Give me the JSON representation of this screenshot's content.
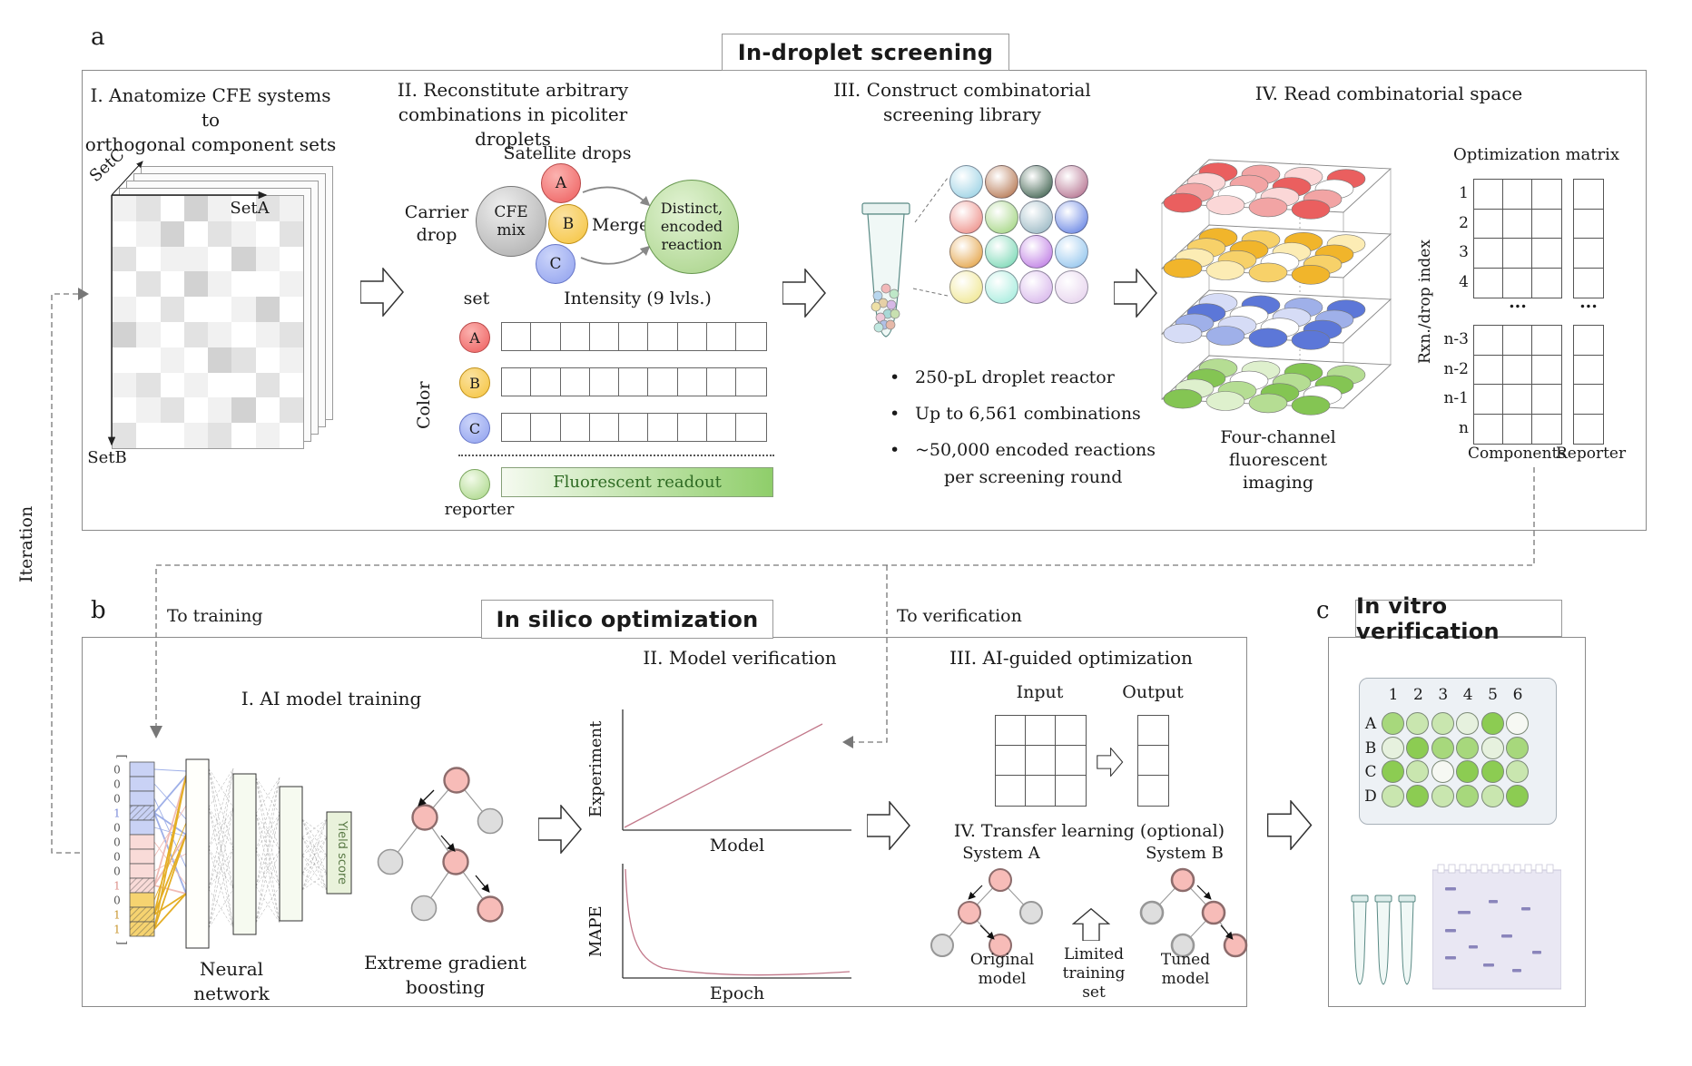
{
  "panel_a": {
    "label": "a",
    "title": "In-droplet screening",
    "step1": {
      "title_line1": "I. Anatomize CFE systems to",
      "title_line2": "orthogonal component sets",
      "set_a": "SetA",
      "set_b": "SetB",
      "set_c": "SetC",
      "heatmap": [
        [
          1,
          2,
          0,
          3,
          1,
          0,
          2,
          1
        ],
        [
          0,
          1,
          3,
          0,
          2,
          1,
          0,
          2
        ],
        [
          2,
          0,
          1,
          1,
          0,
          3,
          1,
          0
        ],
        [
          0,
          2,
          0,
          3,
          1,
          0,
          0,
          1
        ],
        [
          1,
          0,
          2,
          0,
          0,
          1,
          3,
          0
        ],
        [
          3,
          1,
          0,
          2,
          1,
          0,
          1,
          2
        ],
        [
          0,
          0,
          1,
          0,
          3,
          2,
          0,
          1
        ],
        [
          1,
          2,
          0,
          1,
          0,
          0,
          2,
          0
        ],
        [
          0,
          1,
          2,
          0,
          1,
          3,
          0,
          2
        ],
        [
          2,
          0,
          0,
          1,
          2,
          0,
          1,
          0
        ]
      ]
    },
    "step2": {
      "title_line1": "II. Reconstitute arbitrary",
      "title_line2": "combinations in picoliter droplets",
      "satellite_label": "Satellite drops",
      "carrier_label_line1": "Carrier",
      "carrier_label_line2": "drop",
      "carrier_text_line1": "CFE",
      "carrier_text_line2": "mix",
      "merge_label": "Merge",
      "reaction_line1": "Distinct,",
      "reaction_line2": "encoded",
      "reaction_line3": "reaction",
      "drop_a": "A",
      "drop_b": "B",
      "drop_c": "C",
      "set_header": "set",
      "intensity_header": "Intensity (9 lvls.)",
      "color_axis": "Color",
      "row_a": "A",
      "row_b": "B",
      "row_c": "C",
      "intensity_levels": 9,
      "readout_label": "Fluorescent readout",
      "reporter_label": "reporter"
    },
    "step3": {
      "title_line1": "III. Construct combinatorial",
      "title_line2": "screening library",
      "bullet1": "250-pL droplet reactor",
      "bullet2": "Up to 6,561 combinations",
      "bullet3_line1": "~50,000 encoded reactions",
      "bullet3_line2": "per screening round",
      "sphere_colors": [
        "#a9d8e8",
        "#c08a6a",
        "#5d7a6a",
        "#c087a0",
        "#f0a09a",
        "#b2dc96",
        "#a8c2cc",
        "#7e97e8",
        "#e8b162",
        "#8edec0",
        "#c890e8",
        "#a2cdf0",
        "#f2eaa0",
        "#b2efe2",
        "#ddc0ee",
        "#ead9f0"
      ],
      "tube_ball_colors": [
        "#f2b8b8",
        "#b8d6ee",
        "#bfe8c8",
        "#e6d0a6",
        "#d6b8e6",
        "#eee0a6",
        "#a8d8d6",
        "#eec8d8",
        "#c8e0b0",
        "#b0c0e6",
        "#e6b8a8",
        "#c0e8e0"
      ]
    },
    "step4": {
      "title": "IV. Read combinatorial space",
      "caption_line1": "Four-channel",
      "caption_line2": "fluorescent imaging",
      "matrix_title": "Optimization matrix",
      "index_axis": "Rxn./drop index",
      "row_labels_top": [
        "1",
        "2",
        "3",
        "4"
      ],
      "row_labels_bottom": [
        "n-3",
        "n-2",
        "n-1",
        "n"
      ],
      "ellipsis": "...",
      "components_label": "Components",
      "reporter_label": "Reporter",
      "component_cols": 3,
      "matrix_rows": 4,
      "layers": [
        {
          "ramp": [
            "#ffffff",
            "#fbd7d7",
            "#f2a4a4",
            "#ea5f5f"
          ],
          "pattern": [
            3,
            2,
            1,
            3,
            1,
            2,
            3,
            0,
            2,
            0,
            1,
            2,
            3,
            1,
            2,
            3
          ]
        },
        {
          "ramp": [
            "#ffffff",
            "#fcecb4",
            "#f7d169",
            "#f1b52b"
          ],
          "pattern": [
            3,
            2,
            3,
            1,
            2,
            3,
            1,
            3,
            1,
            2,
            0,
            2,
            3,
            1,
            2,
            3
          ]
        },
        {
          "ramp": [
            "#ffffff",
            "#d6dcf6",
            "#9fb0e9",
            "#5c77d8"
          ],
          "pattern": [
            1,
            3,
            2,
            3,
            3,
            0,
            1,
            2,
            2,
            1,
            0,
            3,
            1,
            2,
            3,
            3
          ]
        },
        {
          "ramp": [
            "#ffffff",
            "#def0cd",
            "#b5dd93",
            "#84c553"
          ],
          "pattern": [
            2,
            1,
            3,
            2,
            3,
            0,
            2,
            3,
            1,
            2,
            3,
            0,
            3,
            1,
            2,
            3
          ]
        }
      ]
    }
  },
  "connectors": {
    "iteration": "Iteration",
    "to_training": "To training",
    "to_verification": "To verification"
  },
  "panel_b": {
    "label": "b",
    "title": "In silico optimization",
    "step1": {
      "title": "I. AI model training",
      "input_vector": [
        "0",
        "0",
        "0",
        "1",
        "0",
        "0",
        "0",
        "0",
        "1",
        "0",
        "1",
        "1"
      ],
      "vector_cell_colors": [
        "blue",
        "blue",
        "blue",
        "blue",
        "blue",
        "pink",
        "pink",
        "pink",
        "pink",
        "yellow",
        "yellow",
        "yellow"
      ],
      "vector_hatched": [
        3,
        8,
        10,
        11
      ],
      "cell_palette": {
        "blue": "#c9d2f5",
        "pink": "#f9dbd8",
        "yellow": "#f6d370"
      },
      "digit_colors": {
        "3": "#7b8ad8",
        "8": "#dc8f88",
        "10": "#c8952c",
        "11": "#c8952c"
      },
      "bracket_open": "[",
      "bracket_close": "]",
      "yield_label": "Yield score",
      "nn_caption": "Neural network",
      "xgb_caption_line1": "Extreme gradient",
      "xgb_caption_line2": "boosting"
    },
    "step2": {
      "title": "II. Model verification",
      "plot1_ylabel": "Experiment",
      "plot1_xlabel": "Model",
      "plot2_ylabel": "MAPE",
      "plot2_xlabel": "Epoch"
    },
    "step3": {
      "title": "III. AI-guided optimization",
      "input_label": "Input",
      "output_label": "Output"
    },
    "step4": {
      "title": "IV. Transfer learning (optional)",
      "system_a": "System A",
      "system_b": "System B",
      "original_line1": "Original",
      "original_line2": "model",
      "limited_line1": "Limited",
      "limited_line2": "training",
      "limited_line3": "set",
      "tuned_line1": "Tuned",
      "tuned_line2": "model"
    }
  },
  "panel_c": {
    "label": "c",
    "title": "In vitro verification",
    "plate": {
      "col_labels": [
        "1",
        "2",
        "3",
        "4",
        "5",
        "6"
      ],
      "row_labels": [
        "A",
        "B",
        "C",
        "D"
      ],
      "well_levels": [
        [
          "m",
          "l",
          "l",
          "v",
          "d",
          "w"
        ],
        [
          "v",
          "d",
          "m",
          "m",
          "v",
          "m"
        ],
        [
          "d",
          "l",
          "w",
          "d",
          "d",
          "l"
        ],
        [
          "l",
          "d",
          "l",
          "m",
          "l",
          "d"
        ]
      ],
      "level_colors": {
        "d": "#8ccc52",
        "m": "#a7d87c",
        "l": "#c9e6af",
        "v": "#e6f1de",
        "w": "#f6f8f3"
      }
    }
  }
}
